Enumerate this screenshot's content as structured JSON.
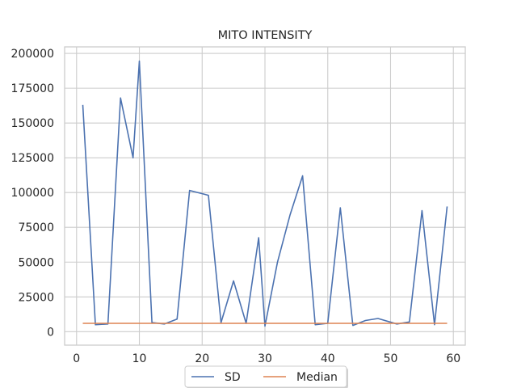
{
  "chart_data": {
    "type": "line",
    "title": "MITO INTENSITY",
    "xlabel": "",
    "ylabel": "",
    "xlim": [
      -1.9,
      61.9
    ],
    "ylim": [
      -9700,
      204700
    ],
    "x_ticks": [
      0,
      10,
      20,
      30,
      40,
      50,
      60
    ],
    "y_ticks": [
      0,
      25000,
      50000,
      75000,
      100000,
      125000,
      150000,
      175000,
      200000
    ],
    "grid": true,
    "legend": "bottom-center",
    "series": [
      {
        "name": "SD",
        "color": "#4c72b0",
        "x": [
          1,
          3,
          5,
          7,
          9,
          10,
          12,
          14,
          16,
          18,
          21,
          23,
          25,
          27,
          29,
          30,
          32,
          34,
          36,
          38,
          40,
          42,
          44,
          46,
          48,
          51,
          53,
          55,
          57,
          59
        ],
        "y": [
          163000,
          5000,
          5500,
          168000,
          125000,
          194500,
          6500,
          5500,
          9000,
          101500,
          98000,
          6500,
          36500,
          6000,
          67500,
          4000,
          50000,
          84000,
          112000,
          5000,
          6000,
          89000,
          4500,
          8000,
          9500,
          5500,
          7000,
          87000,
          5000,
          90000
        ]
      },
      {
        "name": "Median",
        "color": "#dd8452",
        "x": [
          1,
          59
        ],
        "y": [
          6000,
          6000
        ]
      }
    ]
  }
}
